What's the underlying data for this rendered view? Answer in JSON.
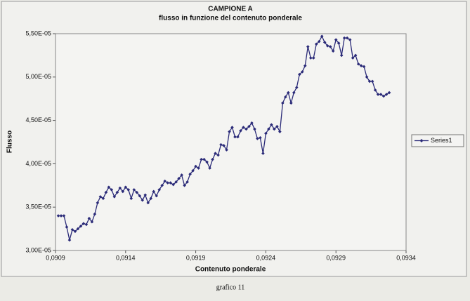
{
  "chart_data": {
    "type": "line",
    "title": "CAMPIONE A",
    "subtitle": "flusso in funzione del contenuto ponderale",
    "x_label": "Contenuto ponderale",
    "y_label": "Flusso",
    "caption": "grafico 11",
    "legend": "right",
    "grid": false,
    "xlim": [
      0.0909,
      0.0934
    ],
    "xticks": [
      {
        "value": 0.0909,
        "label": "0,0909"
      },
      {
        "value": 0.0914,
        "label": "0,0914"
      },
      {
        "value": 0.0919,
        "label": "0,0919"
      },
      {
        "value": 0.0924,
        "label": "0,0924"
      },
      {
        "value": 0.0929,
        "label": "0,0929"
      },
      {
        "value": 0.0934,
        "label": "0,0934"
      }
    ],
    "ylim": [
      3e-05,
      5.5e-05
    ],
    "yticks": [
      {
        "value": 3e-05,
        "label": "3,00E-05"
      },
      {
        "value": 3.5e-05,
        "label": "3,50E-05"
      },
      {
        "value": 4e-05,
        "label": "4,00E-05"
      },
      {
        "value": 4.5e-05,
        "label": "4,50E-05"
      },
      {
        "value": 5e-05,
        "label": "5,00E-05"
      },
      {
        "value": 5.5e-05,
        "label": "5,50E-05"
      }
    ],
    "x": [
      0.09092,
      0.09094,
      0.09096,
      0.09098,
      0.091,
      0.09102,
      0.09104,
      0.09106,
      0.09108,
      0.0911,
      0.09112,
      0.09114,
      0.09116,
      0.09118,
      0.0912,
      0.09122,
      0.09124,
      0.09126,
      0.09128,
      0.0913,
      0.09132,
      0.09134,
      0.09136,
      0.09138,
      0.0914,
      0.09142,
      0.09144,
      0.09146,
      0.09148,
      0.0915,
      0.09152,
      0.09154,
      0.09156,
      0.09158,
      0.0916,
      0.09162,
      0.09164,
      0.09166,
      0.09168,
      0.0917,
      0.09172,
      0.09174,
      0.09176,
      0.09178,
      0.0918,
      0.09182,
      0.09184,
      0.09186,
      0.09188,
      0.0919,
      0.09192,
      0.09194,
      0.09196,
      0.09198,
      0.092,
      0.09202,
      0.09204,
      0.09206,
      0.09208,
      0.0921,
      0.09212,
      0.09214,
      0.09216,
      0.09218,
      0.0922,
      0.09222,
      0.09224,
      0.09226,
      0.09228,
      0.0923,
      0.09232,
      0.09234,
      0.09236,
      0.09238,
      0.0924,
      0.09242,
      0.09244,
      0.09246,
      0.09248,
      0.0925,
      0.09252,
      0.09254,
      0.09256,
      0.09258,
      0.0926,
      0.09262,
      0.09264,
      0.09266,
      0.09268,
      0.0927,
      0.09272,
      0.09274,
      0.09276,
      0.09278,
      0.0928,
      0.09282,
      0.09284,
      0.09286,
      0.09288,
      0.0929,
      0.09292,
      0.09294,
      0.09296,
      0.09298,
      0.093,
      0.09302,
      0.09304,
      0.09306,
      0.09308,
      0.0931,
      0.09312,
      0.09314,
      0.09316,
      0.09318,
      0.0932,
      0.09322,
      0.09324,
      0.09326,
      0.09328
    ],
    "series": [
      {
        "name": "Series1",
        "color": "#2a2a78",
        "values": [
          3.4e-05,
          3.4e-05,
          3.4e-05,
          3.27e-05,
          3.12e-05,
          3.24e-05,
          3.22e-05,
          3.25e-05,
          3.28e-05,
          3.31e-05,
          3.3e-05,
          3.37e-05,
          3.33e-05,
          3.42e-05,
          3.55e-05,
          3.62e-05,
          3.6e-05,
          3.67e-05,
          3.73e-05,
          3.7e-05,
          3.62e-05,
          3.67e-05,
          3.72e-05,
          3.68e-05,
          3.73e-05,
          3.7e-05,
          3.6e-05,
          3.7e-05,
          3.67e-05,
          3.63e-05,
          3.58e-05,
          3.64e-05,
          3.55e-05,
          3.6e-05,
          3.68e-05,
          3.63e-05,
          3.7e-05,
          3.75e-05,
          3.8e-05,
          3.78e-05,
          3.78e-05,
          3.76e-05,
          3.79e-05,
          3.83e-05,
          3.87e-05,
          3.75e-05,
          3.79e-05,
          3.88e-05,
          3.92e-05,
          3.97e-05,
          3.95e-05,
          4.05e-05,
          4.05e-05,
          4.02e-05,
          3.95e-05,
          4.05e-05,
          4.12e-05,
          4.1e-05,
          4.22e-05,
          4.21e-05,
          4.16e-05,
          4.37e-05,
          4.42e-05,
          4.31e-05,
          4.31e-05,
          4.38e-05,
          4.42e-05,
          4.4e-05,
          4.43e-05,
          4.47e-05,
          4.4e-05,
          4.29e-05,
          4.3e-05,
          4.12e-05,
          4.35e-05,
          4.4e-05,
          4.45e-05,
          4.4e-05,
          4.43e-05,
          4.37e-05,
          4.7e-05,
          4.77e-05,
          4.82e-05,
          4.7e-05,
          4.82e-05,
          4.88e-05,
          5.03e-05,
          5.06e-05,
          5.13e-05,
          5.35e-05,
          5.22e-05,
          5.22e-05,
          5.38e-05,
          5.41e-05,
          5.47e-05,
          5.4e-05,
          5.36e-05,
          5.35e-05,
          5.3e-05,
          5.43e-05,
          5.39e-05,
          5.25e-05,
          5.45e-05,
          5.45e-05,
          5.43e-05,
          5.22e-05,
          5.25e-05,
          5.15e-05,
          5.13e-05,
          5.12e-05,
          5e-05,
          4.95e-05,
          4.95e-05,
          4.85e-05,
          4.8e-05,
          4.8e-05,
          4.78e-05,
          4.8e-05,
          4.82e-05
        ]
      }
    ]
  }
}
